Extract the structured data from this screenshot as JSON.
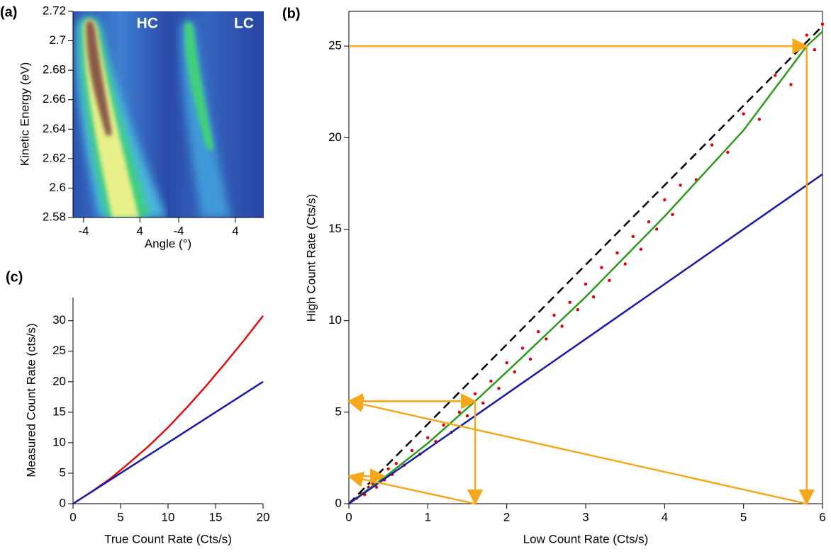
{
  "chart_data": [
    {
      "type": "heatmap",
      "panel": "(a)",
      "panel_labels": [
        "HC",
        "LC"
      ],
      "xlabel": "Angle (°)",
      "ylabel": "Kinetic Energy (eV)",
      "xlim": [
        -5.5,
        8
      ],
      "xticks": [
        -4,
        4
      ],
      "ylim": [
        2.58,
        2.72
      ],
      "yticks": [
        2.58,
        2.6,
        2.62,
        2.64,
        2.66,
        2.68,
        2.7,
        2.72
      ]
    },
    {
      "type": "scatter",
      "panel": "(b)",
      "xlabel": "Low Count Rate (Cts/s)",
      "ylabel": "High Count Rate (Cts/s)",
      "xlim": [
        0,
        6
      ],
      "xticks": [
        0,
        1,
        2,
        3,
        4,
        5,
        6
      ],
      "ylim": [
        0,
        26.9
      ],
      "yticks": [
        0,
        5,
        10,
        15,
        20,
        25
      ],
      "series": [
        {
          "style": "points",
          "color": "#e00000",
          "x": [
            0.1,
            0.15,
            0.2,
            0.25,
            0.3,
            0.35,
            0.4,
            0.45,
            0.5,
            0.55,
            0.6,
            0.7,
            0.8,
            0.9,
            1.0,
            1.1,
            1.2,
            1.3,
            1.4,
            1.5,
            1.6,
            1.7,
            1.8,
            1.9,
            2.0,
            2.1,
            2.2,
            2.3,
            2.4,
            2.5,
            2.6,
            2.7,
            2.8,
            2.9,
            3.0,
            3.1,
            3.2,
            3.3,
            3.4,
            3.5,
            3.6,
            3.7,
            3.8,
            3.9,
            4.0,
            4.1,
            4.2,
            4.4,
            4.6,
            4.8,
            5.0,
            5.2,
            5.4,
            5.6,
            5.8,
            5.9,
            6.0
          ],
          "values": [
            0.3,
            0.6,
            0.5,
            0.9,
            1.1,
            0.9,
            1.5,
            1.3,
            1.9,
            1.6,
            2.2,
            2.1,
            2.9,
            2.7,
            3.6,
            3.4,
            4.3,
            3.9,
            5.0,
            4.8,
            6.0,
            5.5,
            6.7,
            6.3,
            7.7,
            7.2,
            8.5,
            7.9,
            9.4,
            9.0,
            10.3,
            9.7,
            11.0,
            10.6,
            12.0,
            11.3,
            12.9,
            12.2,
            13.7,
            13.1,
            14.6,
            13.9,
            15.4,
            15.0,
            16.6,
            15.8,
            17.4,
            17.7,
            19.6,
            19.2,
            21.3,
            21.0,
            23.4,
            22.9,
            25.6,
            24.8,
            26.2
          ]
        },
        {
          "style": "dashed",
          "color": "#000000",
          "x": [
            0,
            6
          ],
          "values": [
            0,
            26.1
          ]
        },
        {
          "style": "line",
          "color": "#2e9a1e",
          "x": [
            0,
            0.5,
            1,
            1.6,
            2,
            3,
            4,
            5,
            5.8,
            6
          ],
          "values": [
            0,
            1.6,
            3.3,
            5.6,
            7.2,
            11.3,
            15.7,
            20.4,
            25,
            25.8
          ]
        },
        {
          "style": "line",
          "color": "#1a1aa8",
          "x": [
            0,
            6
          ],
          "values": [
            0,
            18
          ]
        }
      ],
      "arrow_color": "#f5a81c",
      "arrows": [
        [
          0,
          25,
          5.8,
          25
        ],
        [
          5.8,
          25,
          5.8,
          0
        ],
        [
          5.8,
          0,
          0,
          5.6
        ],
        [
          1.6,
          5.6,
          0,
          5.6
        ],
        [
          0,
          5.6,
          1.6,
          5.6
        ],
        [
          1.6,
          5.6,
          1.6,
          0
        ],
        [
          1.6,
          0,
          0,
          1.5
        ],
        [
          0,
          1.5,
          0.45,
          1.5
        ]
      ]
    },
    {
      "type": "line",
      "panel": "(c)",
      "xlabel": "True Count Rate (Cts/s)",
      "ylabel": "Measured Count Rate (cts/s)",
      "xlim": [
        0,
        20
      ],
      "xticks": [
        0,
        5,
        10,
        15,
        20
      ],
      "ylim": [
        0,
        33.8
      ],
      "yticks": [
        0,
        5,
        10,
        15,
        20,
        25,
        30
      ],
      "series": [
        {
          "color": "#e01010",
          "x": [
            0,
            2,
            4,
            6,
            8,
            10,
            12,
            14,
            16,
            18,
            20
          ],
          "values": [
            0,
            2,
            4.2,
            6.8,
            9.5,
            12.5,
            15.8,
            19.3,
            23,
            26.8,
            30.8
          ]
        },
        {
          "color": "#1a1aa8",
          "x": [
            0,
            20
          ],
          "values": [
            0,
            20
          ]
        }
      ]
    }
  ]
}
